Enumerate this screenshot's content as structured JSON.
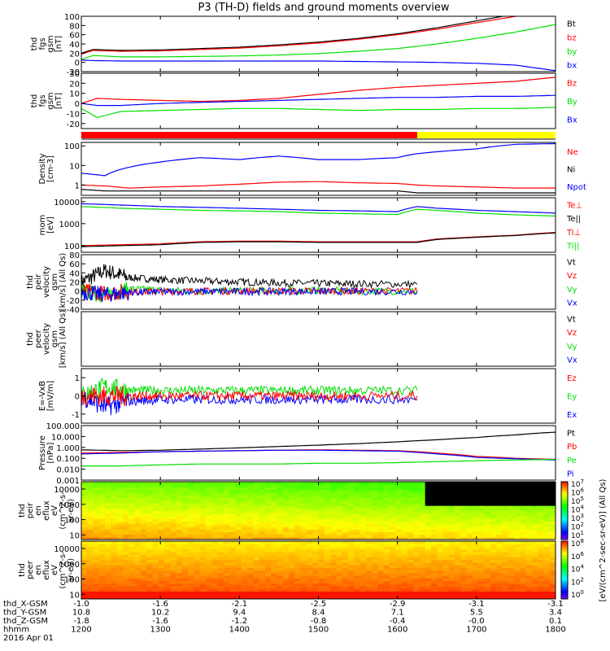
{
  "title": "P3 (TH-D) fields and ground moments overview",
  "colors": {
    "black": "#000000",
    "red": "#ff0000",
    "green": "#00e000",
    "blue": "#0000ff",
    "yellow": "#ffff00"
  },
  "x_axis": {
    "ticks": [
      "1200",
      "1300",
      "1400",
      "1500",
      "1600",
      "1700",
      "1800"
    ],
    "range": [
      1200,
      1800
    ],
    "rows": [
      {
        "label": "thd_X-GSM",
        "values": [
          "-1.0",
          "-1.6",
          "-2.1",
          "-2.5",
          "-2.9",
          "-3.1",
          "-3.1"
        ]
      },
      {
        "label": "thd_Y-GSM",
        "values": [
          "10.8",
          "10.2",
          "9.4",
          "8.4",
          "7.1",
          "5.5",
          "3.4"
        ]
      },
      {
        "label": "thd_Z-GSM",
        "values": [
          "-1.8",
          "-1.6",
          "-1.2",
          "-0.8",
          "-0.4",
          "-0.0",
          "0.1"
        ]
      },
      {
        "label": "hhmm",
        "values": []
      },
      {
        "label": "2016 Apr 01",
        "values": []
      }
    ]
  },
  "colorbar_label": "[eV/(cm^2-sec-sr-eV)] (All Qs)",
  "chart_data": [
    {
      "id": "fgs_gsm_total",
      "type": "line",
      "ylabel": [
        "thd",
        "fgs",
        "gsm",
        "[nT]"
      ],
      "ylim": [
        -20,
        100
      ],
      "yticks": [
        "100",
        "80",
        "60",
        "40",
        "20",
        "0",
        "-20"
      ],
      "legend": [
        {
          "name": "Bt",
          "color": "black"
        },
        {
          "name": "bz",
          "color": "red"
        },
        {
          "name": "by",
          "color": "green"
        },
        {
          "name": "bx",
          "color": "blue"
        }
      ],
      "x": [
        1200,
        1215,
        1250,
        1300,
        1350,
        1400,
        1450,
        1500,
        1550,
        1600,
        1650,
        1700,
        1750,
        1800
      ],
      "series": [
        {
          "color": "black",
          "values": [
            20,
            28,
            26,
            27,
            30,
            33,
            38,
            44,
            52,
            62,
            75,
            90,
            105,
            120
          ]
        },
        {
          "color": "red",
          "values": [
            18,
            26,
            24,
            25,
            28,
            31,
            36,
            42,
            50,
            60,
            72,
            86,
            100,
            114
          ]
        },
        {
          "color": "green",
          "values": [
            6,
            15,
            12,
            12,
            13,
            14,
            16,
            19,
            24,
            30,
            40,
            52,
            66,
            82
          ]
        },
        {
          "color": "blue",
          "values": [
            5,
            4,
            3,
            3,
            3,
            3,
            3,
            3,
            2,
            1,
            0,
            -2,
            -6,
            -18
          ]
        }
      ]
    },
    {
      "id": "fgs_gsm_components",
      "type": "line",
      "ylabel": [
        "thd",
        "fgs",
        "gsm",
        "[nT]"
      ],
      "ylim": [
        -25,
        30
      ],
      "yticks": [
        "30",
        "20",
        "10",
        "0",
        "-10",
        "-20"
      ],
      "legend": [
        {
          "name": "Bz",
          "color": "red"
        },
        {
          "name": "By",
          "color": "green"
        },
        {
          "name": "Bx",
          "color": "blue"
        }
      ],
      "x": [
        1200,
        1220,
        1250,
        1300,
        1350,
        1400,
        1450,
        1500,
        1550,
        1600,
        1650,
        1700,
        1750,
        1800
      ],
      "series": [
        {
          "color": "red",
          "values": [
            0,
            5,
            4,
            3,
            2,
            3,
            5,
            9,
            13,
            16,
            18,
            20,
            22,
            26
          ]
        },
        {
          "color": "green",
          "values": [
            -5,
            -14,
            -8,
            -7,
            -6,
            -5,
            -5,
            -6,
            -7,
            -6,
            -6,
            -5,
            -5,
            -4
          ]
        },
        {
          "color": "blue",
          "values": [
            0,
            -2,
            -2,
            0,
            1,
            2,
            3,
            4,
            5,
            6,
            6,
            7,
            7,
            8
          ]
        }
      ]
    },
    {
      "id": "mode_bar",
      "type": "bar",
      "segments": [
        {
          "from": 1200,
          "to": 1625,
          "color": "red"
        },
        {
          "from": 1625,
          "to": 1800,
          "color": "yellow"
        }
      ]
    },
    {
      "id": "density",
      "type": "line",
      "yscale": "log",
      "ylabel": [
        "Density",
        "[cm-3]"
      ],
      "ylim": [
        0.3,
        150
      ],
      "yticks": [
        "100",
        "10",
        "1"
      ],
      "legend": [
        {
          "name": "Ne",
          "color": "red"
        },
        {
          "name": "Ni",
          "color": "black"
        },
        {
          "name": "Npot",
          "color": "blue"
        }
      ],
      "x": [
        1200,
        1230,
        1260,
        1300,
        1350,
        1400,
        1450,
        1500,
        1550,
        1600,
        1625,
        1650,
        1700,
        1750,
        1800
      ],
      "series": [
        {
          "color": "blue",
          "values": [
            4,
            3,
            8,
            15,
            25,
            20,
            30,
            20,
            20,
            25,
            40,
            50,
            70,
            120,
            130
          ]
        },
        {
          "color": "red",
          "values": [
            1,
            0.9,
            0.7,
            0.8,
            0.9,
            1.1,
            1.4,
            1.5,
            1.3,
            1.2,
            1.0,
            0.9,
            0.8,
            0.7,
            0.7
          ]
        },
        {
          "color": "black",
          "values": [
            0.6,
            0.5,
            0.5,
            0.5,
            0.5,
            0.5,
            0.5,
            0.5,
            0.5,
            0.5,
            0.4,
            0.4,
            0.4,
            0.4,
            0.4
          ]
        }
      ]
    },
    {
      "id": "temperature",
      "type": "line",
      "yscale": "log",
      "ylabel": [
        "mom",
        "[eV]"
      ],
      "ylim": [
        50,
        15000
      ],
      "yticks": [
        "10000",
        "1000",
        "100"
      ],
      "legend": [
        {
          "name": "Te⊥",
          "color": "red"
        },
        {
          "name": "Te||",
          "color": "black"
        },
        {
          "name": "Ti⊥",
          "color": "red"
        },
        {
          "name": "Ti||",
          "color": "green"
        }
      ],
      "x": [
        1200,
        1250,
        1300,
        1350,
        1400,
        1450,
        1500,
        1550,
        1600,
        1625,
        1650,
        1700,
        1750,
        1800
      ],
      "series": [
        {
          "color": "blue",
          "values": [
            8000,
            7000,
            6000,
            5500,
            5000,
            4500,
            4000,
            3800,
            3500,
            6000,
            5000,
            4000,
            3500,
            3000
          ]
        },
        {
          "color": "green",
          "values": [
            6000,
            5000,
            4500,
            4000,
            3800,
            3500,
            3000,
            2800,
            2600,
            4500,
            4000,
            3000,
            2500,
            2200
          ]
        },
        {
          "color": "red",
          "values": [
            100,
            110,
            120,
            150,
            160,
            160,
            150,
            150,
            150,
            150,
            200,
            250,
            300,
            400
          ]
        },
        {
          "color": "black",
          "values": [
            90,
            100,
            110,
            140,
            150,
            150,
            140,
            140,
            140,
            140,
            190,
            240,
            290,
            380
          ]
        }
      ]
    },
    {
      "id": "peir_velocity",
      "type": "line",
      "ylabel": [
        "thd",
        "peir",
        "velocity",
        "gsm",
        "[km/s] (All Qs)"
      ],
      "ylim": [
        -40,
        80
      ],
      "yticks": [
        "80",
        "60",
        "40",
        "20",
        "0",
        "-20",
        "-40"
      ],
      "legend": [
        {
          "name": "Vt",
          "color": "black"
        },
        {
          "name": "Vz",
          "color": "red"
        },
        {
          "name": "Vy",
          "color": "green"
        },
        {
          "name": "Vx",
          "color": "blue"
        }
      ],
      "x": [
        1200,
        1230,
        1260,
        1300,
        1350,
        1400,
        1450,
        1500,
        1550,
        1625
      ],
      "series": [
        {
          "color": "black",
          "values": [
            20,
            45,
            30,
            25,
            22,
            20,
            18,
            17,
            16,
            15
          ]
        },
        {
          "color": "green",
          "values": [
            0,
            -10,
            5,
            2,
            0,
            1,
            0,
            2,
            0,
            0
          ]
        },
        {
          "color": "red",
          "values": [
            0,
            -5,
            -2,
            -1,
            0,
            0,
            0,
            0,
            0,
            0
          ]
        },
        {
          "color": "blue",
          "values": [
            -2,
            -8,
            -3,
            -2,
            -1,
            -1,
            -1,
            -1,
            -1,
            -1
          ]
        }
      ]
    },
    {
      "id": "peer_velocity",
      "type": "line",
      "ylabel": [
        "thd",
        "peer",
        "velocity",
        "gsm",
        "[km/s] (All Qs)"
      ],
      "ylim": [
        -40,
        80
      ],
      "yticks": [],
      "legend": [
        {
          "name": "Vt",
          "color": "black"
        },
        {
          "name": "Vz",
          "color": "red"
        },
        {
          "name": "Vy",
          "color": "green"
        },
        {
          "name": "Vx",
          "color": "blue"
        }
      ],
      "x": [],
      "series": []
    },
    {
      "id": "e_field",
      "type": "line",
      "ylabel": [
        "E=-VxB",
        "[mV/m]"
      ],
      "ylim": [
        -1.5,
        1.5
      ],
      "yticks": [
        "1",
        "0",
        "-1"
      ],
      "legend": [
        {
          "name": "Ez",
          "color": "red"
        },
        {
          "name": "Ey",
          "color": "green"
        },
        {
          "name": "Ex",
          "color": "blue"
        }
      ],
      "x": [
        1200,
        1230,
        1260,
        1300,
        1350,
        1400,
        1450,
        1500,
        1550,
        1625
      ],
      "series": [
        {
          "color": "green",
          "values": [
            0,
            0.5,
            0.3,
            0.3,
            0.3,
            0.3,
            0.3,
            0.3,
            0.3,
            0.3
          ]
        },
        {
          "color": "blue",
          "values": [
            0,
            -0.6,
            -0.3,
            -0.2,
            -0.2,
            -0.2,
            -0.2,
            -0.2,
            -0.2,
            -0.2
          ]
        },
        {
          "color": "red",
          "values": [
            0,
            0,
            0,
            0,
            0,
            0,
            0,
            0,
            0,
            0
          ]
        }
      ]
    },
    {
      "id": "pressure",
      "type": "line",
      "yscale": "log",
      "ylabel": [
        "Pressure",
        "[nPa]"
      ],
      "ylim": [
        0.001,
        100
      ],
      "yticks": [
        "100.000",
        "10.000",
        "1.000",
        "0.100",
        "0.010",
        "0.001"
      ],
      "legend": [
        {
          "name": "Pt",
          "color": "black"
        },
        {
          "name": "Pb",
          "color": "red"
        },
        {
          "name": "Pe",
          "color": "green"
        },
        {
          "name": "Pi",
          "color": "blue"
        }
      ],
      "x": [
        1200,
        1250,
        1300,
        1350,
        1400,
        1450,
        1500,
        1550,
        1600,
        1650,
        1700,
        1750,
        1800
      ],
      "series": [
        {
          "color": "black",
          "values": [
            0.6,
            0.5,
            0.55,
            0.7,
            0.9,
            1.2,
            1.6,
            2.2,
            3.2,
            5,
            8,
            14,
            25
          ]
        },
        {
          "color": "red",
          "values": [
            0.3,
            0.35,
            0.4,
            0.45,
            0.5,
            0.55,
            0.6,
            0.55,
            0.5,
            0.3,
            0.15,
            0.1,
            0.08
          ]
        },
        {
          "color": "blue",
          "values": [
            0.25,
            0.3,
            0.4,
            0.45,
            0.5,
            0.55,
            0.55,
            0.5,
            0.45,
            0.25,
            0.12,
            0.09,
            0.07
          ]
        },
        {
          "color": "green",
          "values": [
            0.02,
            0.02,
            0.025,
            0.03,
            0.03,
            0.03,
            0.035,
            0.035,
            0.04,
            0.05,
            0.06,
            0.07,
            0.08
          ]
        }
      ]
    },
    {
      "id": "peir_en_eflux",
      "type": "heatmap",
      "ylabel": [
        "thd",
        "peir",
        "en",
        "eflux",
        "eV",
        "(cm^2-s-",
        "sr-eV)"
      ],
      "ylim": [
        5,
        30000
      ],
      "yscale": "log",
      "yticks": [
        "10000",
        "1000",
        "100",
        "10"
      ],
      "color_ticks": [
        "10^7",
        "10^6",
        "10^5",
        "10^4",
        "10^3",
        "10^2",
        "10^1"
      ],
      "data_end": 1800
    },
    {
      "id": "peer_en_eflux",
      "type": "heatmap",
      "ylabel": [
        "thd",
        "peer",
        "en",
        "eflux",
        "eV",
        "(cm^2-s-",
        "sr-eV)"
      ],
      "ylim": [
        5,
        30000
      ],
      "yscale": "log",
      "yticks": [
        "10000",
        "1000",
        "100",
        "10"
      ],
      "color_ticks": [
        "10^8",
        "10^6",
        "10^4",
        "10^2",
        "10^0"
      ],
      "data_end": 1800
    }
  ]
}
